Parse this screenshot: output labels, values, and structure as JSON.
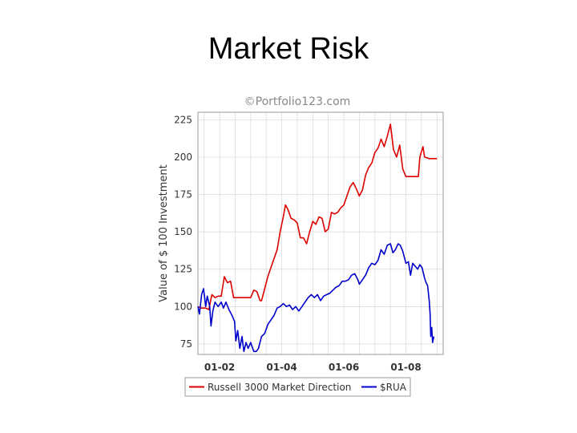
{
  "slide": {
    "title": "Market Risk"
  },
  "chart_data": {
    "type": "line",
    "watermark": "©Portfolio123.com",
    "title": "",
    "xlabel": "",
    "ylabel": "Value of $ 100 Investment",
    "xlim": [
      2001.3,
      2009.2
    ],
    "ylim": [
      68,
      230
    ],
    "yticks": [
      75,
      100,
      125,
      150,
      175,
      200,
      225
    ],
    "xticks": [
      {
        "x": 2002,
        "label": "01-02"
      },
      {
        "x": 2004,
        "label": "01-04"
      },
      {
        "x": 2006,
        "label": "01-06"
      },
      {
        "x": 2008,
        "label": "01-08"
      }
    ],
    "grid": true,
    "legend_position": "bottom",
    "colors": {
      "series1": "#dd0000",
      "series2": "#0000cc",
      "grid": "#d8d8d8",
      "frame": "#9a9a9a",
      "axis_text": "#333333"
    },
    "series": [
      {
        "name": "Russell 3000 Market Direction",
        "points": [
          [
            2001.3,
            100
          ],
          [
            2001.4,
            99
          ],
          [
            2001.55,
            99
          ],
          [
            2001.65,
            98
          ],
          [
            2001.75,
            108
          ],
          [
            2001.85,
            106
          ],
          [
            2001.95,
            107
          ],
          [
            2002.05,
            107
          ],
          [
            2002.15,
            120
          ],
          [
            2002.25,
            116
          ],
          [
            2002.35,
            117
          ],
          [
            2002.45,
            106
          ],
          [
            2002.6,
            106
          ],
          [
            2002.8,
            106
          ],
          [
            2003.0,
            106
          ],
          [
            2003.1,
            111
          ],
          [
            2003.2,
            110
          ],
          [
            2003.3,
            104
          ],
          [
            2003.35,
            104
          ],
          [
            2003.45,
            112
          ],
          [
            2003.55,
            120
          ],
          [
            2003.65,
            126
          ],
          [
            2003.75,
            132
          ],
          [
            2003.85,
            138
          ],
          [
            2003.95,
            150
          ],
          [
            2004.05,
            160
          ],
          [
            2004.12,
            168
          ],
          [
            2004.2,
            165
          ],
          [
            2004.3,
            159
          ],
          [
            2004.4,
            158
          ],
          [
            2004.5,
            156
          ],
          [
            2004.6,
            146
          ],
          [
            2004.7,
            146
          ],
          [
            2004.8,
            142
          ],
          [
            2004.9,
            150
          ],
          [
            2005.0,
            157
          ],
          [
            2005.1,
            155
          ],
          [
            2005.2,
            160
          ],
          [
            2005.3,
            159
          ],
          [
            2005.4,
            150
          ],
          [
            2005.5,
            152
          ],
          [
            2005.6,
            163
          ],
          [
            2005.7,
            162
          ],
          [
            2005.8,
            163
          ],
          [
            2005.9,
            166
          ],
          [
            2006.0,
            168
          ],
          [
            2006.1,
            174
          ],
          [
            2006.2,
            180
          ],
          [
            2006.3,
            183
          ],
          [
            2006.4,
            179
          ],
          [
            2006.5,
            174
          ],
          [
            2006.6,
            178
          ],
          [
            2006.7,
            188
          ],
          [
            2006.8,
            193
          ],
          [
            2006.9,
            196
          ],
          [
            2007.0,
            203
          ],
          [
            2007.1,
            206
          ],
          [
            2007.2,
            212
          ],
          [
            2007.3,
            207
          ],
          [
            2007.4,
            214
          ],
          [
            2007.5,
            222
          ],
          [
            2007.6,
            205
          ],
          [
            2007.7,
            200
          ],
          [
            2007.8,
            208
          ],
          [
            2007.9,
            192
          ],
          [
            2008.0,
            187
          ],
          [
            2008.2,
            187
          ],
          [
            2008.4,
            187
          ],
          [
            2008.45,
            200
          ],
          [
            2008.55,
            207
          ],
          [
            2008.6,
            200
          ],
          [
            2008.75,
            199
          ],
          [
            2009.0,
            199
          ]
        ]
      },
      {
        "name": "$RUA",
        "points": [
          [
            2001.3,
            100
          ],
          [
            2001.35,
            95
          ],
          [
            2001.42,
            108
          ],
          [
            2001.48,
            112
          ],
          [
            2001.55,
            100
          ],
          [
            2001.6,
            107
          ],
          [
            2001.68,
            100
          ],
          [
            2001.72,
            87
          ],
          [
            2001.78,
            97
          ],
          [
            2001.85,
            103
          ],
          [
            2001.95,
            100
          ],
          [
            2002.05,
            103
          ],
          [
            2002.12,
            99
          ],
          [
            2002.2,
            103
          ],
          [
            2002.3,
            98
          ],
          [
            2002.4,
            94
          ],
          [
            2002.48,
            90
          ],
          [
            2002.52,
            77
          ],
          [
            2002.58,
            84
          ],
          [
            2002.65,
            72
          ],
          [
            2002.72,
            80
          ],
          [
            2002.78,
            70
          ],
          [
            2002.85,
            76
          ],
          [
            2002.92,
            72
          ],
          [
            2003.0,
            76
          ],
          [
            2003.1,
            70
          ],
          [
            2003.18,
            70
          ],
          [
            2003.25,
            72
          ],
          [
            2003.35,
            80
          ],
          [
            2003.45,
            82
          ],
          [
            2003.55,
            88
          ],
          [
            2003.65,
            91
          ],
          [
            2003.75,
            94
          ],
          [
            2003.85,
            99
          ],
          [
            2003.95,
            100
          ],
          [
            2004.05,
            102
          ],
          [
            2004.15,
            100
          ],
          [
            2004.25,
            101
          ],
          [
            2004.35,
            98
          ],
          [
            2004.45,
            100
          ],
          [
            2004.55,
            97
          ],
          [
            2004.65,
            100
          ],
          [
            2004.75,
            103
          ],
          [
            2004.85,
            106
          ],
          [
            2004.95,
            108
          ],
          [
            2005.05,
            106
          ],
          [
            2005.15,
            108
          ],
          [
            2005.25,
            104
          ],
          [
            2005.35,
            107
          ],
          [
            2005.45,
            108
          ],
          [
            2005.55,
            109
          ],
          [
            2005.65,
            111
          ],
          [
            2005.75,
            113
          ],
          [
            2005.85,
            114
          ],
          [
            2005.95,
            117
          ],
          [
            2006.05,
            117
          ],
          [
            2006.15,
            118
          ],
          [
            2006.25,
            121
          ],
          [
            2006.35,
            122
          ],
          [
            2006.45,
            118
          ],
          [
            2006.5,
            115
          ],
          [
            2006.6,
            118
          ],
          [
            2006.7,
            121
          ],
          [
            2006.8,
            126
          ],
          [
            2006.9,
            129
          ],
          [
            2007.0,
            128
          ],
          [
            2007.1,
            131
          ],
          [
            2007.2,
            138
          ],
          [
            2007.3,
            135
          ],
          [
            2007.4,
            141
          ],
          [
            2007.5,
            142
          ],
          [
            2007.58,
            136
          ],
          [
            2007.66,
            138
          ],
          [
            2007.75,
            142
          ],
          [
            2007.82,
            141
          ],
          [
            2007.9,
            137
          ],
          [
            2008.0,
            129
          ],
          [
            2008.08,
            130
          ],
          [
            2008.15,
            121
          ],
          [
            2008.22,
            129
          ],
          [
            2008.3,
            127
          ],
          [
            2008.38,
            125
          ],
          [
            2008.45,
            128
          ],
          [
            2008.52,
            126
          ],
          [
            2008.6,
            119
          ],
          [
            2008.65,
            116
          ],
          [
            2008.7,
            114
          ],
          [
            2008.75,
            104
          ],
          [
            2008.78,
            95
          ],
          [
            2008.8,
            80
          ],
          [
            2008.83,
            86
          ],
          [
            2008.86,
            76
          ],
          [
            2008.9,
            80
          ]
        ]
      }
    ]
  }
}
